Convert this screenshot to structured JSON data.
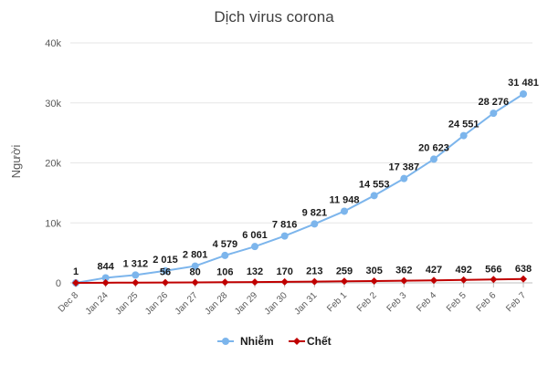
{
  "chart_data": {
    "type": "line",
    "title": "Dịch virus corona",
    "xlabel": "",
    "ylabel": "Người",
    "ylim": [
      0,
      40000
    ],
    "yticks": [
      0,
      10000,
      20000,
      30000,
      40000
    ],
    "ytick_labels": [
      "0",
      "10k",
      "20k",
      "30k",
      "40k"
    ],
    "categories": [
      "Dec 8",
      "Jan 24",
      "Jan 25",
      "Jan 26",
      "Jan 27",
      "Jan 28",
      "Jan 29",
      "Jan 30",
      "Jan 31",
      "Feb 1",
      "Feb 2",
      "Feb 3",
      "Feb 4",
      "Feb 5",
      "Feb 6",
      "Feb 7"
    ],
    "series": [
      {
        "name": "Nhiễm",
        "color": "#7cb5ec",
        "values": [
          1,
          844,
          1312,
          2015,
          2801,
          4579,
          6061,
          7816,
          9821,
          11948,
          14553,
          17387,
          20623,
          24551,
          28276,
          31481
        ],
        "labels": [
          "1",
          "844",
          "1 312",
          "2 015",
          "2 801",
          "4 579",
          "6 061",
          "7 816",
          "9 821",
          "11 948",
          "14 553",
          "17 387",
          "20 623",
          "24 551",
          "28 276",
          "31 481"
        ]
      },
      {
        "name": "Chết",
        "color": "#c00000",
        "values": [
          0,
          26,
          41,
          56,
          80,
          106,
          132,
          170,
          213,
          259,
          305,
          362,
          427,
          492,
          566,
          638
        ],
        "labels": [
          "",
          "",
          "",
          "56",
          "80",
          "106",
          "132",
          "170",
          "213",
          "259",
          "305",
          "362",
          "427",
          "492",
          "566",
          "638"
        ]
      }
    ],
    "grid": true,
    "legend_position": "bottom"
  }
}
